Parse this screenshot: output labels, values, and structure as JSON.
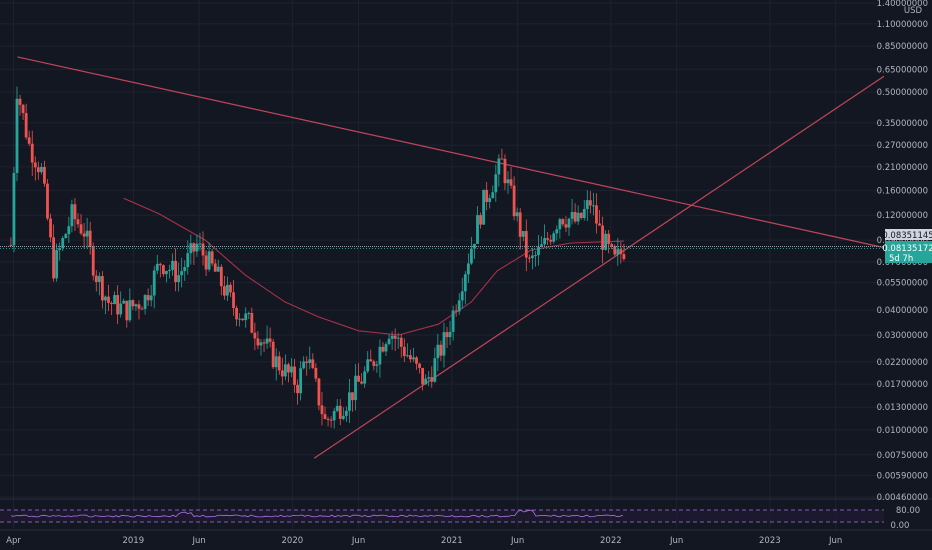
{
  "chart_data": {
    "type": "candlestick",
    "currency": "USD",
    "scale": "log",
    "y_ticks": [
      "1.40000000",
      "1.10000000",
      "0.85000000",
      "0.65000000",
      "0.50000000",
      "0.35000000",
      "0.27000000",
      "0.21000000",
      "0.16000000",
      "0.12000000",
      "0.09000000",
      "0.07000000",
      "0.05500000",
      "0.04000000",
      "0.03000000",
      "0.02200000",
      "0.01700000",
      "0.01300000",
      "0.01000000",
      "0.00750000",
      "0.00590000",
      "0.00460000"
    ],
    "y_tick_values": [
      1.4,
      1.1,
      0.85,
      0.65,
      0.5,
      0.35,
      0.27,
      0.21,
      0.16,
      0.12,
      0.09,
      0.07,
      0.055,
      0.04,
      0.03,
      0.022,
      0.017,
      0.013,
      0.01,
      0.0075,
      0.0059,
      0.0046
    ],
    "x_ticks": [
      "Apr",
      "2019",
      "Jun",
      "2020",
      "Jun",
      "2021",
      "Jun",
      "2022",
      "Jun",
      "2023",
      "Jun"
    ],
    "x_tick_dates": [
      "2018-04-01",
      "2019-01-01",
      "2019-06-01",
      "2020-01-01",
      "2020-06-01",
      "2021-01-01",
      "2021-06-01",
      "2022-01-01",
      "2022-06-01",
      "2023-01-01",
      "2023-06-01"
    ],
    "x_range": [
      "2018-03-01",
      "2023-09-20"
    ],
    "last_price": "0.08351145",
    "price_tag": "0.08135172",
    "countdown": "5d 7h",
    "last_price_value": 0.08351145,
    "price_tag_value": 0.08135172,
    "trendlines": [
      {
        "name": "descending-resistance",
        "from": [
          "2018-04-10",
          0.75
        ],
        "to": [
          "2023-09-20",
          0.0825
        ],
        "color": "#c2455a"
      },
      {
        "name": "ascending-support",
        "from": [
          "2020-02-20",
          0.0072
        ],
        "to": [
          "2023-09-20",
          0.6
        ],
        "color": "#c2455a"
      }
    ],
    "moving_average": {
      "color": "#a8314a",
      "points": [
        [
          "2018-12-10",
          0.146
        ],
        [
          "2019-03-01",
          0.122
        ],
        [
          "2019-06-15",
          0.09
        ],
        [
          "2019-09-15",
          0.06
        ],
        [
          "2019-12-15",
          0.044
        ],
        [
          "2020-03-01",
          0.037
        ],
        [
          "2020-06-01",
          0.0315
        ],
        [
          "2020-09-01",
          0.03
        ],
        [
          "2020-12-01",
          0.034
        ],
        [
          "2021-02-15",
          0.044
        ],
        [
          "2021-04-15",
          0.063
        ],
        [
          "2021-07-01",
          0.08
        ],
        [
          "2021-10-01",
          0.087
        ],
        [
          "2022-01-31",
          0.089
        ]
      ]
    },
    "candle_anchors": [
      [
        "2018-03-26",
        0.085
      ],
      [
        "2018-04-09",
        0.52
      ],
      [
        "2018-05-07",
        0.27
      ],
      [
        "2018-06-04",
        0.2
      ],
      [
        "2018-07-02",
        0.065
      ],
      [
        "2018-08-13",
        0.12
      ],
      [
        "2018-09-10",
        0.1
      ],
      [
        "2018-10-08",
        0.06
      ],
      [
        "2018-11-05",
        0.044
      ],
      [
        "2018-12-17",
        0.04
      ],
      [
        "2019-01-28",
        0.046
      ],
      [
        "2019-03-04",
        0.07
      ],
      [
        "2019-04-15",
        0.06
      ],
      [
        "2019-05-27",
        0.085
      ],
      [
        "2019-07-08",
        0.062
      ],
      [
        "2019-08-19",
        0.042
      ],
      [
        "2019-10-07",
        0.032
      ],
      [
        "2019-11-25",
        0.022
      ],
      [
        "2020-01-13",
        0.017
      ],
      [
        "2020-02-03",
        0.024
      ],
      [
        "2020-03-16",
        0.011
      ],
      [
        "2020-05-04",
        0.014
      ],
      [
        "2020-06-29",
        0.021
      ],
      [
        "2020-08-10",
        0.032
      ],
      [
        "2020-09-21",
        0.024
      ],
      [
        "2020-11-02",
        0.017
      ],
      [
        "2020-12-21",
        0.03
      ],
      [
        "2021-02-01",
        0.065
      ],
      [
        "2021-03-15",
        0.14
      ],
      [
        "2021-04-26",
        0.22
      ],
      [
        "2021-05-24",
        0.13
      ],
      [
        "2021-06-28",
        0.068
      ],
      [
        "2021-08-02",
        0.085
      ],
      [
        "2021-09-06",
        0.12
      ],
      [
        "2021-10-18",
        0.11
      ],
      [
        "2021-11-15",
        0.14
      ],
      [
        "2021-12-13",
        0.09
      ],
      [
        "2022-01-10",
        0.07
      ],
      [
        "2022-01-31",
        0.081
      ]
    ],
    "rsi": {
      "upper_band": "80.00",
      "lower_band": "0.00"
    }
  }
}
